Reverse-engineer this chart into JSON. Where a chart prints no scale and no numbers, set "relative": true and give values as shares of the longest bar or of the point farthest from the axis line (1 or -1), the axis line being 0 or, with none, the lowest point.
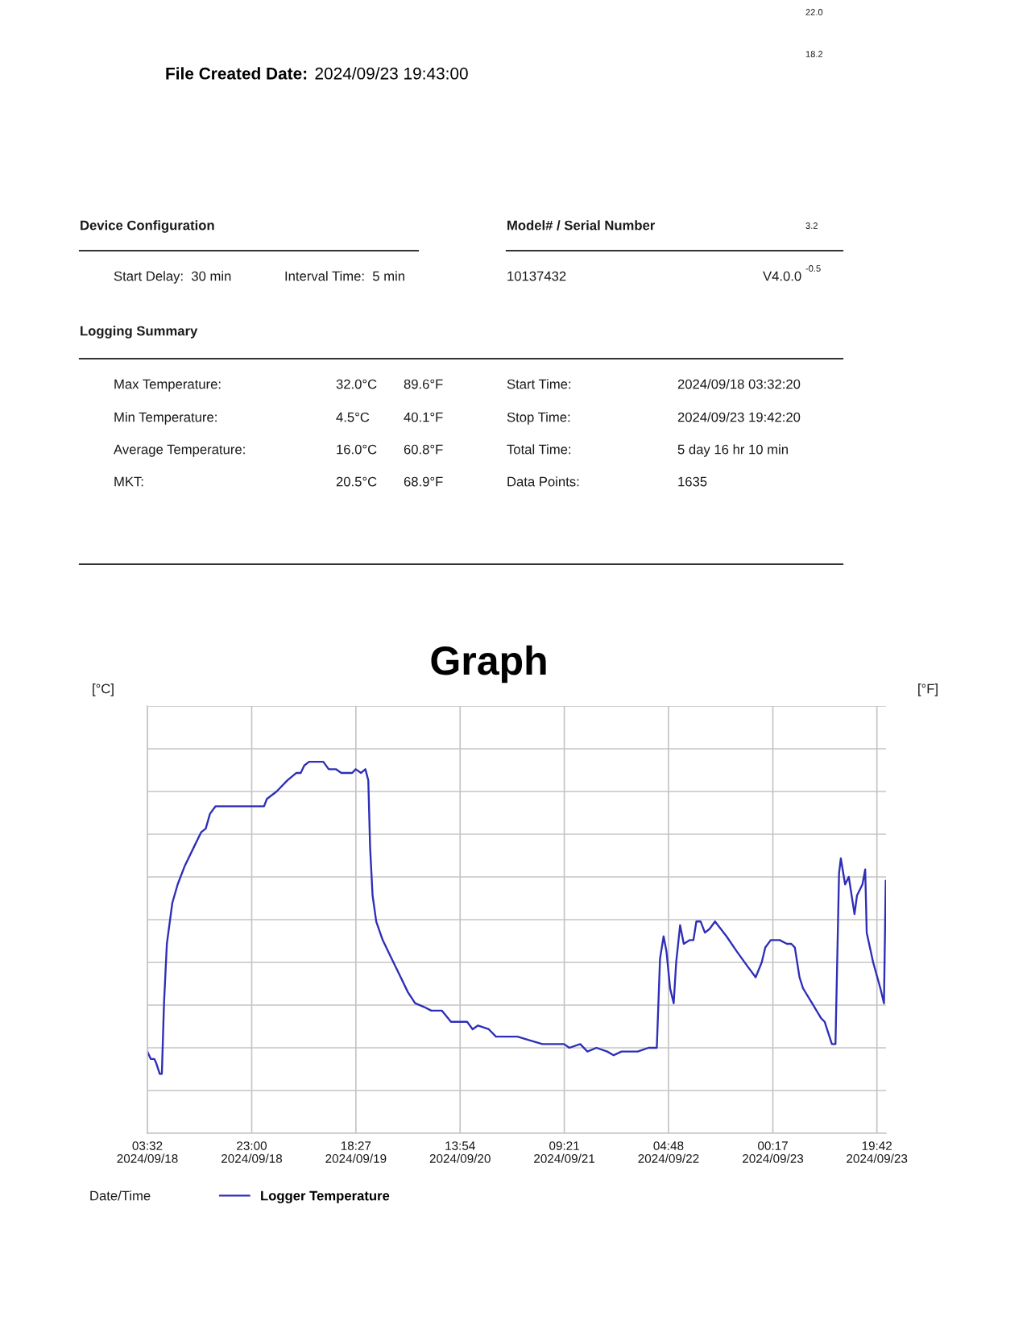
{
  "chart_data": {
    "type": "line",
    "title": "Graph",
    "xlabel": "Date/Time",
    "ylabel": "[°C]",
    "y2label": "[°F]",
    "relative": true,
    "grid": true,
    "legend": "bottom",
    "x": [
      "2024-09-18T03:32",
      "2024-09-18T04:09",
      "2024-09-18T04:49",
      "2024-09-18T05:09",
      "2024-09-18T05:50",
      "2024-09-18T06:14",
      "2024-09-18T06:38",
      "2024-09-18T07:10",
      "2024-09-18T08:11",
      "2024-09-18T09:11",
      "2024-09-18T10:31",
      "2024-09-18T12:12",
      "2024-09-18T13:33",
      "2024-09-18T14:25",
      "2024-09-18T15:13",
      "2024-09-18T16:14",
      "2024-09-19T01:18",
      "2024-09-19T01:50",
      "2024-09-19T03:39",
      "2024-09-19T05:40",
      "2024-09-19T07:21",
      "2024-09-19T08:09",
      "2024-09-19T08:49",
      "2024-09-19T09:42",
      "2024-09-19T11:22",
      "2024-09-19T12:22",
      "2024-09-19T13:23",
      "2024-09-19T14:43",
      "2024-09-19T15:44",
      "2024-09-19T17:45",
      "2024-09-19T18:25",
      "2024-09-19T19:25",
      "2024-09-19T20:13",
      "2024-09-19T20:46",
      "2024-09-19T21:06",
      "2024-09-19T21:34",
      "2024-09-19T22:15",
      "2024-09-19T23:27",
      "2024-09-20T01:08",
      "2024-09-20T02:49",
      "2024-09-20T04:09",
      "2024-09-20T05:30",
      "2024-09-20T07:10",
      "2024-09-20T08:31",
      "2024-09-20T10:31",
      "2024-09-20T12:12",
      "2024-09-20T15:13",
      "2024-09-20T16:14",
      "2024-09-20T17:15",
      "2024-09-20T19:15",
      "2024-09-20T20:36",
      "2024-09-20T22:37",
      "2024-09-21T00:37",
      "2024-09-21T02:58",
      "2024-09-21T05:16",
      "2024-09-21T09:18",
      "2024-09-21T10:18",
      "2024-09-21T12:19",
      "2024-09-21T13:40",
      "2024-09-21T15:21",
      "2024-09-21T17:21",
      "2024-09-21T18:34",
      "2024-09-21T20:02",
      "2024-09-21T23:03",
      "2024-09-22T01:04",
      "2024-09-22T02:37",
      "2024-09-22T03:13",
      "2024-09-22T03:53",
      "2024-09-22T04:25",
      "2024-09-22T05:06",
      "2024-09-22T05:46",
      "2024-09-22T06:14",
      "2024-09-22T06:58",
      "2024-09-22T07:39",
      "2024-09-22T08:47",
      "2024-09-22T09:27",
      "2024-09-22T10:00",
      "2024-09-22T10:48",
      "2024-09-22T11:36",
      "2024-09-22T12:28",
      "2024-09-22T13:29",
      "2024-09-22T15:38",
      "2024-09-22T17:31",
      "2024-09-22T19:31",
      "2024-09-22T21:04",
      "2024-09-22T22:12",
      "2024-09-22T22:52",
      "2024-09-22T23:53",
      "2024-09-23T01:34",
      "2024-09-23T02:54",
      "2024-09-23T03:43",
      "2024-09-23T04:23",
      "2024-09-23T05:15",
      "2024-09-23T05:55",
      "2024-09-23T07:36",
      "2024-09-23T09:16",
      "2024-09-23T09:57",
      "2024-09-23T11:18",
      "2024-09-23T11:58",
      "2024-09-23T12:38",
      "2024-09-23T12:58",
      "2024-09-23T13:46",
      "2024-09-23T14:27",
      "2024-09-23T15:31",
      "2024-09-23T15:59",
      "2024-09-23T17:00",
      "2024-09-23T17:31",
      "2024-09-23T17:48",
      "2024-09-23T19:00",
      "2024-09-23T20:21",
      "2024-09-23T21:01",
      "2024-09-23T21:21"
    ],
    "series": [
      {
        "name": "Logger Temperature",
        "color": "#2e2eb8",
        "values": [
          0.22,
          0.2,
          0.2,
          0.19,
          0.16,
          0.16,
          0.35,
          0.51,
          0.62,
          0.67,
          0.72,
          0.77,
          0.81,
          0.82,
          0.86,
          0.88,
          0.88,
          0.9,
          0.92,
          0.95,
          0.97,
          0.97,
          0.99,
          1.0,
          1.0,
          1.0,
          0.98,
          0.98,
          0.97,
          0.97,
          0.98,
          0.97,
          0.98,
          0.95,
          0.77,
          0.64,
          0.57,
          0.52,
          0.47,
          0.42,
          0.38,
          0.35,
          0.34,
          0.33,
          0.33,
          0.3,
          0.3,
          0.28,
          0.29,
          0.28,
          0.26,
          0.26,
          0.26,
          0.25,
          0.24,
          0.24,
          0.23,
          0.24,
          0.22,
          0.23,
          0.22,
          0.21,
          0.22,
          0.22,
          0.23,
          0.23,
          0.47,
          0.53,
          0.49,
          0.39,
          0.35,
          0.46,
          0.56,
          0.51,
          0.52,
          0.52,
          0.57,
          0.57,
          0.54,
          0.55,
          0.57,
          0.53,
          0.49,
          0.45,
          0.42,
          0.46,
          0.5,
          0.52,
          0.52,
          0.51,
          0.51,
          0.5,
          0.42,
          0.39,
          0.35,
          0.31,
          0.3,
          0.24,
          0.24,
          0.7,
          0.74,
          0.67,
          0.69,
          0.59,
          0.64,
          0.67,
          0.71,
          0.54,
          0.46,
          0.39,
          0.35,
          0.68
        ]
      }
    ],
    "xlim": [
      "2024-09-18T03:32",
      "2024-09-23T21:24"
    ],
    "xticks": [
      {
        "value": "2024-09-18T03:32",
        "label": "03:32\n2024/09/18"
      },
      {
        "value": "2024-09-18T23:00",
        "label": "23:00\n2024/09/18"
      },
      {
        "value": "2024-09-19T18:27",
        "label": "18:27\n2024/09/19"
      },
      {
        "value": "2024-09-20T13:54",
        "label": "13:54\n2024/09/20"
      },
      {
        "value": "2024-09-21T09:21",
        "label": "09:21\n2024/09/21"
      },
      {
        "value": "2024-09-22T04:48",
        "label": "04:48\n2024/09/22"
      },
      {
        "value": "2024-09-23T00:17",
        "label": "00:17\n2024/09/23"
      },
      {
        "value": "2024-09-23T19:42",
        "label": "19:42\n2024/09/23"
      }
    ],
    "annotations": [
      "File Created Date:",
      "2024/09/23 19:43:00",
      "22.0",
      "18.2",
      "Device Configuration",
      "Model# / Serial Number",
      "3.2",
      "Start Delay:  30 min",
      "Interval Time:  5 min",
      "10137432",
      "V4.0.0",
      "-0.5",
      "Logging Summary",
      "Max Temperature:",
      "32.0°C",
      "89.6°F",
      "Start Time:",
      "2024/09/18 03:32:20",
      "Min Temperature:",
      "4.5°C",
      "40.1°F",
      "Stop Time:",
      "2024/09/23 19:42:20",
      "Average Temperature:",
      "16.0°C",
      "60.8°F",
      "Total Time:",
      "5 day 16 hr 10 min",
      "MKT:",
      "20.5°C",
      "68.9°F",
      "Data Points:",
      "1635"
    ]
  }
}
